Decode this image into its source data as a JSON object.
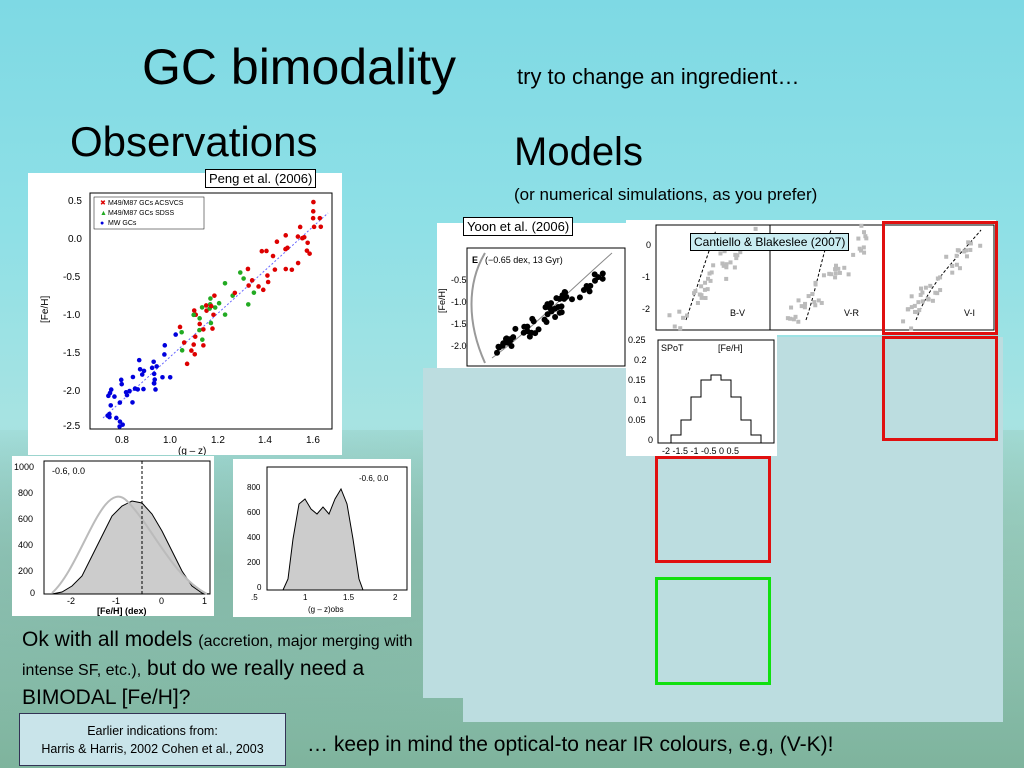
{
  "title": {
    "main": "GC bimodality",
    "sub": "try to change an ingredient…"
  },
  "observations": {
    "heading": "Observations",
    "citation": "Peng et al. (2006)",
    "scatter": {
      "ylabel": "[Fe/H]",
      "legend": [
        "M49/M87 GCs ACSVCS",
        "M49/M87 GCs SDSS",
        "MW GCs"
      ],
      "xticks": [
        "0.8",
        "1.0",
        "1.2",
        "1.4",
        "1.6"
      ],
      "yticks": [
        "0.5",
        "0.0",
        "-0.5",
        "-1.0",
        "-1.5",
        "-2.0",
        "-2.5"
      ],
      "xlabel": "(g – z)"
    },
    "hist_feh": {
      "annot": "-0.6, 0.0",
      "xlabel": "[Fe/H] (dex)",
      "yticks": [
        "1000",
        "800",
        "600",
        "400",
        "200",
        "0"
      ],
      "xticks": [
        "-2",
        "-1",
        "0",
        "1"
      ]
    },
    "hist_gz": {
      "annot": "-0.6, 0.0",
      "xlabel": "(g – z)obs",
      "yticks": [
        "800",
        "600",
        "400",
        "200",
        "0"
      ],
      "xticks": [
        ".5",
        "1",
        "1.5",
        "2"
      ]
    }
  },
  "models": {
    "heading": "Models",
    "sub": "(or numerical simulations, as you prefer)",
    "yoon": {
      "citation": "Yoon et al. (2006)",
      "panel_letter": "E",
      "annot": "(−0.65 dex, 13 Gyr)",
      "ylabel": "[Fe/H]",
      "yticks": [
        "-0.5",
        "-1.0",
        "-1.5",
        "-2.0"
      ]
    },
    "cantiello": {
      "citation": "Cantiello & Blakeslee (2007)",
      "panels": [
        "B-V",
        "V-R",
        "V-I"
      ],
      "yticks": [
        "0",
        "-1",
        "-2"
      ],
      "hist": {
        "left": "SPoT",
        "right": "[Fe/H]",
        "yticks": [
          "0.25",
          "0.2",
          "0.15",
          "0.1",
          "0.05",
          "0"
        ],
        "xticks": "-2 -1.5  -1 -0.5  0  0.5"
      }
    }
  },
  "bottom": {
    "line_a": "Ok with all models",
    "line_b": "(accretion, major merging with intense SF, etc.),",
    "line_c": "but do we really need a BIMODAL [Fe/H]?"
  },
  "earlier": {
    "line1": "Earlier indications from:",
    "line2": "Harris & Harris, 2002 Cohen et al., 2003"
  },
  "keep_in_mind": "… keep in mind the optical-to near IR colours, e.g, (V-K)!"
}
